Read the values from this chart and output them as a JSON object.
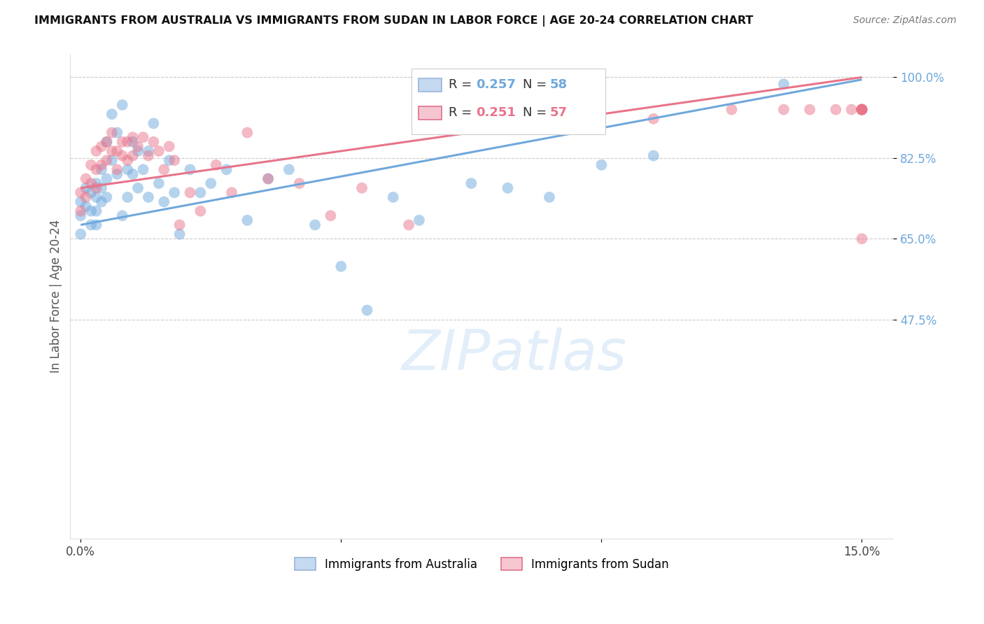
{
  "title": "IMMIGRANTS FROM AUSTRALIA VS IMMIGRANTS FROM SUDAN IN LABOR FORCE | AGE 20-24 CORRELATION CHART",
  "source": "Source: ZipAtlas.com",
  "ylabel": "In Labor Force | Age 20-24",
  "xlim": [
    -0.002,
    0.156
  ],
  "ylim": [
    0.0,
    1.05
  ],
  "xticks": [
    0.0,
    0.05,
    0.1,
    0.15
  ],
  "xticklabels": [
    "0.0%",
    "",
    "",
    "15.0%"
  ],
  "ytick_positions": [
    0.475,
    0.65,
    0.825,
    1.0
  ],
  "ytick_labels": [
    "47.5%",
    "65.0%",
    "82.5%",
    "100.0%"
  ],
  "grid_color": "#cccccc",
  "background_color": "#ffffff",
  "australia_color": "#6fa8dc",
  "sudan_color": "#e8748a",
  "australia_R": "0.257",
  "australia_N": "58",
  "sudan_R": "0.251",
  "sudan_N": "57",
  "australia_line": [
    0.0,
    0.15,
    0.68,
    0.995
  ],
  "sudan_line": [
    0.0,
    0.15,
    0.76,
    1.0
  ],
  "aus_x": [
    0.0,
    0.0,
    0.0,
    0.001,
    0.001,
    0.002,
    0.002,
    0.002,
    0.003,
    0.003,
    0.003,
    0.003,
    0.004,
    0.004,
    0.004,
    0.005,
    0.005,
    0.005,
    0.006,
    0.006,
    0.007,
    0.007,
    0.008,
    0.008,
    0.009,
    0.009,
    0.01,
    0.01,
    0.011,
    0.011,
    0.012,
    0.013,
    0.013,
    0.014,
    0.015,
    0.016,
    0.017,
    0.018,
    0.019,
    0.021,
    0.023,
    0.025,
    0.028,
    0.032,
    0.036,
    0.04,
    0.045,
    0.05,
    0.055,
    0.06,
    0.065,
    0.07,
    0.075,
    0.082,
    0.09,
    0.1,
    0.11,
    0.135
  ],
  "aus_y": [
    0.73,
    0.7,
    0.66,
    0.76,
    0.72,
    0.75,
    0.71,
    0.68,
    0.77,
    0.74,
    0.71,
    0.68,
    0.8,
    0.76,
    0.73,
    0.86,
    0.78,
    0.74,
    0.92,
    0.82,
    0.88,
    0.79,
    0.94,
    0.7,
    0.8,
    0.74,
    0.86,
    0.79,
    0.84,
    0.76,
    0.8,
    0.84,
    0.74,
    0.9,
    0.77,
    0.73,
    0.82,
    0.75,
    0.66,
    0.8,
    0.75,
    0.77,
    0.8,
    0.69,
    0.78,
    0.8,
    0.68,
    0.59,
    0.495,
    0.74,
    0.69,
    0.89,
    0.77,
    0.76,
    0.74,
    0.81,
    0.83,
    0.985
  ],
  "sud_x": [
    0.0,
    0.0,
    0.001,
    0.001,
    0.002,
    0.002,
    0.003,
    0.003,
    0.003,
    0.004,
    0.004,
    0.005,
    0.005,
    0.006,
    0.006,
    0.007,
    0.007,
    0.008,
    0.008,
    0.009,
    0.009,
    0.01,
    0.01,
    0.011,
    0.012,
    0.013,
    0.014,
    0.015,
    0.016,
    0.017,
    0.018,
    0.019,
    0.021,
    0.023,
    0.026,
    0.029,
    0.032,
    0.036,
    0.042,
    0.048,
    0.054,
    0.063,
    0.072,
    0.09,
    0.11,
    0.125,
    0.135,
    0.14,
    0.145,
    0.148,
    0.15,
    0.15,
    0.15,
    0.15,
    0.15,
    0.15,
    0.15
  ],
  "sud_y": [
    0.75,
    0.71,
    0.78,
    0.74,
    0.81,
    0.77,
    0.84,
    0.8,
    0.76,
    0.85,
    0.81,
    0.86,
    0.82,
    0.88,
    0.84,
    0.84,
    0.8,
    0.86,
    0.83,
    0.86,
    0.82,
    0.87,
    0.83,
    0.85,
    0.87,
    0.83,
    0.86,
    0.84,
    0.8,
    0.85,
    0.82,
    0.68,
    0.75,
    0.71,
    0.81,
    0.75,
    0.88,
    0.78,
    0.77,
    0.7,
    0.76,
    0.68,
    0.95,
    0.93,
    0.91,
    0.93,
    0.93,
    0.93,
    0.93,
    0.93,
    0.93,
    0.93,
    0.93,
    0.93,
    0.93,
    0.93,
    0.65
  ],
  "watermark_text": "ZIPatlas",
  "legend_label_aus": "Immigrants from Australia",
  "legend_label_sud": "Immigrants from Sudan"
}
